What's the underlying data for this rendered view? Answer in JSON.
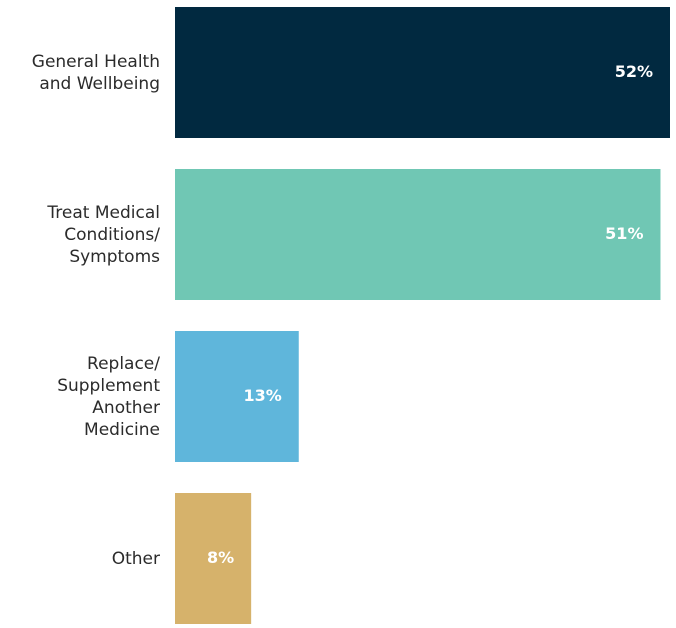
{
  "chart_data": {
    "type": "bar",
    "orientation": "horizontal",
    "categories": [
      "General Health\nand Wellbeing",
      "Treat Medical\nConditions/\nSymptoms",
      "Replace/\nSupplement\nAnother\nMedicine",
      "Other"
    ],
    "values": [
      52,
      51,
      13,
      8
    ],
    "value_labels": [
      "52%",
      "51%",
      "13%",
      "8%"
    ],
    "colors": [
      "#012940",
      "#70c7b4",
      "#5fb6db",
      "#d6b26b"
    ]
  }
}
